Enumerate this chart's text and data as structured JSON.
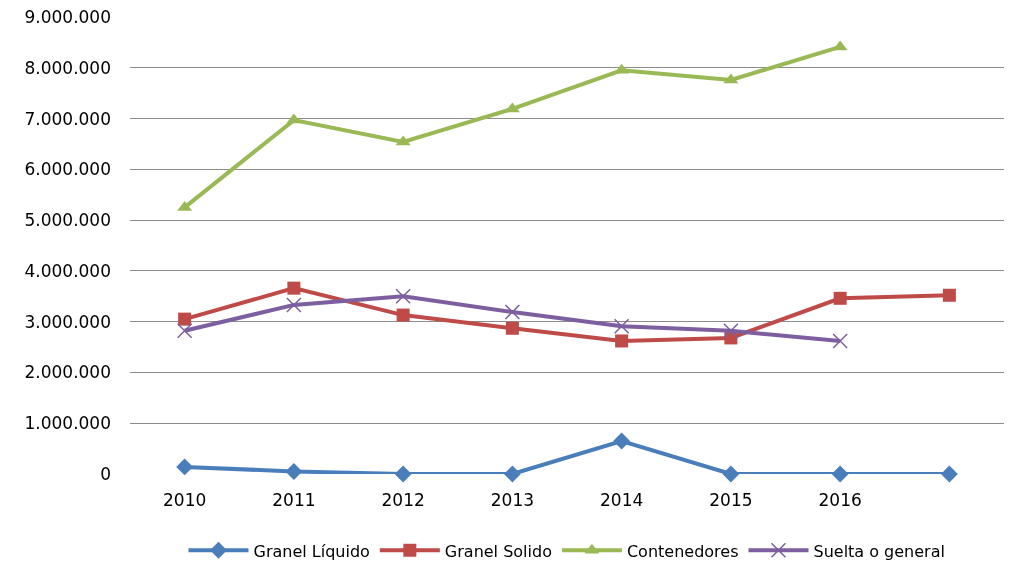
{
  "chart_data": {
    "type": "line",
    "categories": [
      "2010",
      "2011",
      "2012",
      "2013",
      "2014",
      "2015",
      "2016",
      null
    ],
    "series": [
      {
        "name": "Granel Líquido",
        "color": "#4a7ebb",
        "marker": "diamond",
        "values": [
          140000,
          50000,
          0,
          0,
          650000,
          0,
          0,
          0
        ]
      },
      {
        "name": "Granel Solido",
        "color": "#be4b48",
        "marker": "square",
        "values": [
          3050000,
          3660000,
          3130000,
          2870000,
          2620000,
          2680000,
          3460000,
          3520000
        ]
      },
      {
        "name": "Contenedores",
        "color": "#98b954",
        "marker": "triangle",
        "values": [
          5250000,
          6970000,
          6540000,
          7190000,
          7950000,
          7760000,
          8410000,
          null
        ]
      },
      {
        "name": "Suelta o general",
        "color": "#7d5fa0",
        "marker": "cross",
        "values": [
          2820000,
          3330000,
          3500000,
          3190000,
          2910000,
          2820000,
          2620000,
          null
        ]
      }
    ],
    "ylim": [
      0,
      9000000
    ],
    "yticks": [
      0,
      {
        "value": 1000000,
        "label": "1.000.000"
      },
      {
        "value": 2000000,
        "label": "2.000.000"
      },
      {
        "value": 3000000,
        "label": "3.000.000"
      },
      {
        "value": 4000000,
        "label": "4.000.000"
      },
      {
        "value": 5000000,
        "label": "5.000.000"
      },
      {
        "value": 6000000,
        "label": "6.000.000"
      },
      {
        "value": 7000000,
        "label": "7.000.000"
      },
      {
        "value": 8000000,
        "label": "8.000.000"
      },
      {
        "value": 9000000,
        "label": "9.000.000"
      }
    ],
    "grid": "y",
    "legend": "bottom",
    "line_style": "solid"
  }
}
